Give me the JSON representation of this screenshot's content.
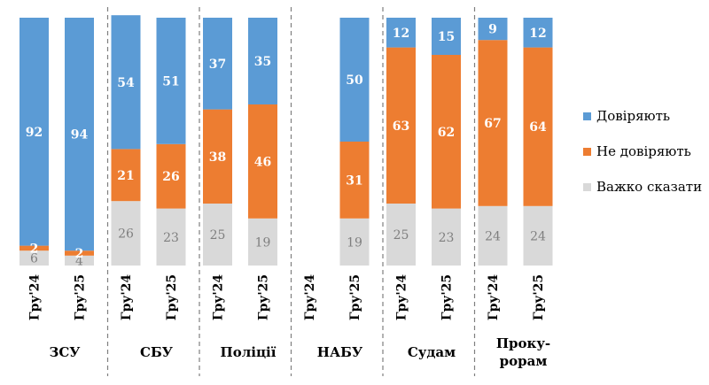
{
  "chart_data": {
    "type": "bar",
    "stacked": true,
    "orientation": "vertical",
    "ylim": [
      0,
      100
    ],
    "grid": false,
    "legend_position": "right",
    "groups": [
      {
        "label_lines": [
          "ЗСУ"
        ],
        "categories": [
          "Гру'24",
          "Гру'25"
        ]
      },
      {
        "label_lines": [
          "СБУ"
        ],
        "categories": [
          "Гру'24",
          "Гру'25"
        ]
      },
      {
        "label_lines": [
          "Поліції"
        ],
        "categories": [
          "Гру'24",
          "Гру'25"
        ]
      },
      {
        "label_lines": [
          "НАБУ"
        ],
        "categories": [
          "Гру'24",
          "Гру'25"
        ]
      },
      {
        "label_lines": [
          "Судам"
        ],
        "categories": [
          "Гру'24",
          "Гру'25"
        ]
      },
      {
        "label_lines": [
          "Проку-",
          "рорам"
        ],
        "categories": [
          "Гру'24",
          "Гру'25"
        ]
      }
    ],
    "series": [
      {
        "name": "Важко сказати",
        "color": "#d9d9d9",
        "label_color": "#7f7f7f",
        "values": [
          6,
          4,
          26,
          23,
          25,
          19,
          null,
          19,
          25,
          23,
          24,
          24
        ]
      },
      {
        "name": "Не  довіряють",
        "color": "#ed7d31",
        "label_color": "#ffffff",
        "values": [
          2,
          2,
          21,
          26,
          38,
          46,
          null,
          31,
          63,
          62,
          67,
          64
        ]
      },
      {
        "name": "Довіряють",
        "color": "#5b9bd5",
        "label_color": "#ffffff",
        "values": [
          92,
          94,
          54,
          51,
          37,
          35,
          null,
          50,
          12,
          15,
          9,
          12
        ]
      }
    ],
    "legend_order": [
      "Довіряють",
      "Не  довіряють",
      "Важко сказати"
    ]
  }
}
